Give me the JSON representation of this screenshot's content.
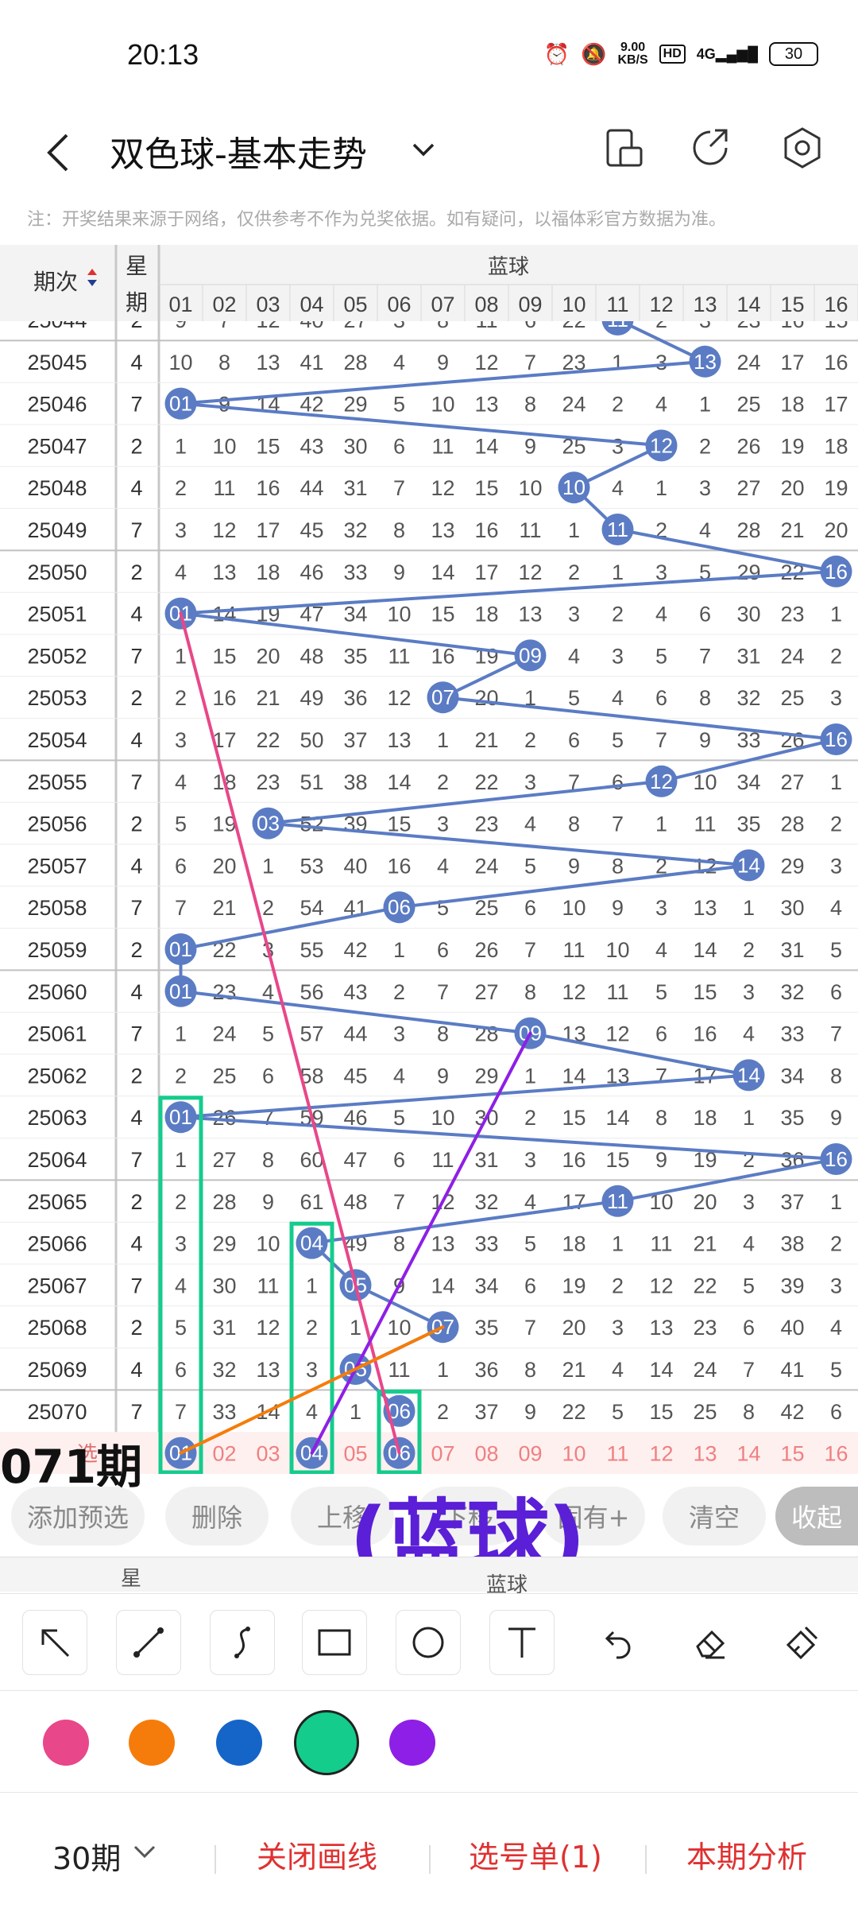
{
  "status": {
    "time": "20:13",
    "net_speed_top": "9.00",
    "net_speed_bottom": "KB/S",
    "hd": "HD",
    "signal": "4G",
    "battery": "30"
  },
  "header": {
    "title": "双色球-基本走势"
  },
  "notice": "注：开奖结果来源于网络，仅供参考不作为兑奖依据。如有疑问，以福体彩官方数据为准。",
  "table": {
    "period_header": "期次",
    "week_header": "星期",
    "blue_header": "蓝球",
    "columns": [
      "01",
      "02",
      "03",
      "04",
      "05",
      "06",
      "07",
      "08",
      "09",
      "10",
      "11",
      "12",
      "13",
      "14",
      "15",
      "16"
    ],
    "partial_row": {
      "period": "25044",
      "week": "2",
      "cells": [
        9,
        7,
        12,
        40,
        27,
        3,
        8,
        11,
        6,
        22,
        null,
        2,
        3,
        23,
        16,
        15
      ],
      "hit": 11
    },
    "rows": [
      {
        "period": "25045",
        "week": "4",
        "cells": [
          10,
          8,
          13,
          41,
          28,
          4,
          9,
          12,
          7,
          23,
          1,
          3,
          null,
          24,
          17,
          16
        ],
        "hit": 13
      },
      {
        "period": "25046",
        "week": "7",
        "cells": [
          null,
          9,
          14,
          42,
          29,
          5,
          10,
          13,
          8,
          24,
          2,
          4,
          1,
          25,
          18,
          17
        ],
        "hit": 1
      },
      {
        "period": "25047",
        "week": "2",
        "cells": [
          1,
          10,
          15,
          43,
          30,
          6,
          11,
          14,
          9,
          25,
          3,
          null,
          2,
          26,
          19,
          18
        ],
        "hit": 12
      },
      {
        "period": "25048",
        "week": "4",
        "cells": [
          2,
          11,
          16,
          44,
          31,
          7,
          12,
          15,
          10,
          null,
          4,
          1,
          3,
          27,
          20,
          19
        ],
        "hit": 10
      },
      {
        "period": "25049",
        "week": "7",
        "cells": [
          3,
          12,
          17,
          45,
          32,
          8,
          13,
          16,
          11,
          1,
          null,
          2,
          4,
          28,
          21,
          20
        ],
        "hit": 11
      },
      {
        "period": "25050",
        "week": "2",
        "cells": [
          4,
          13,
          18,
          46,
          33,
          9,
          14,
          17,
          12,
          2,
          1,
          3,
          5,
          29,
          22,
          null
        ],
        "hit": 16
      },
      {
        "period": "25051",
        "week": "4",
        "cells": [
          null,
          14,
          19,
          47,
          34,
          10,
          15,
          18,
          13,
          3,
          2,
          4,
          6,
          30,
          23,
          1
        ],
        "hit": 1
      },
      {
        "period": "25052",
        "week": "7",
        "cells": [
          1,
          15,
          20,
          48,
          35,
          11,
          16,
          19,
          null,
          4,
          3,
          5,
          7,
          31,
          24,
          2
        ],
        "hit": 9
      },
      {
        "period": "25053",
        "week": "2",
        "cells": [
          2,
          16,
          21,
          49,
          36,
          12,
          null,
          20,
          1,
          5,
          4,
          6,
          8,
          32,
          25,
          3
        ],
        "hit": 7
      },
      {
        "period": "25054",
        "week": "4",
        "cells": [
          3,
          17,
          22,
          50,
          37,
          13,
          1,
          21,
          2,
          6,
          5,
          7,
          9,
          33,
          26,
          null
        ],
        "hit": 16
      },
      {
        "period": "25055",
        "week": "7",
        "cells": [
          4,
          18,
          23,
          51,
          38,
          14,
          2,
          22,
          3,
          7,
          6,
          null,
          10,
          34,
          27,
          1
        ],
        "hit": 12
      },
      {
        "period": "25056",
        "week": "2",
        "cells": [
          5,
          19,
          null,
          52,
          39,
          15,
          3,
          23,
          4,
          8,
          7,
          1,
          11,
          35,
          28,
          2
        ],
        "hit": 3
      },
      {
        "period": "25057",
        "week": "4",
        "cells": [
          6,
          20,
          1,
          53,
          40,
          16,
          4,
          24,
          5,
          9,
          8,
          2,
          12,
          null,
          29,
          3
        ],
        "hit": 14
      },
      {
        "period": "25058",
        "week": "7",
        "cells": [
          7,
          21,
          2,
          54,
          41,
          null,
          5,
          25,
          6,
          10,
          9,
          3,
          13,
          1,
          30,
          4
        ],
        "hit": 6
      },
      {
        "period": "25059",
        "week": "2",
        "cells": [
          null,
          22,
          3,
          55,
          42,
          1,
          6,
          26,
          7,
          11,
          10,
          4,
          14,
          2,
          31,
          5
        ],
        "hit": 1
      },
      {
        "period": "25060",
        "week": "4",
        "cells": [
          null,
          23,
          4,
          56,
          43,
          2,
          7,
          27,
          8,
          12,
          11,
          5,
          15,
          3,
          32,
          6
        ],
        "hit": 1
      },
      {
        "period": "25061",
        "week": "7",
        "cells": [
          1,
          24,
          5,
          57,
          44,
          3,
          8,
          28,
          null,
          13,
          12,
          6,
          16,
          4,
          33,
          7
        ],
        "hit": 9
      },
      {
        "period": "25062",
        "week": "2",
        "cells": [
          2,
          25,
          6,
          58,
          45,
          4,
          9,
          29,
          1,
          14,
          13,
          7,
          17,
          null,
          34,
          8
        ],
        "hit": 14
      },
      {
        "period": "25063",
        "week": "4",
        "cells": [
          null,
          26,
          7,
          59,
          46,
          5,
          10,
          30,
          2,
          15,
          14,
          8,
          18,
          1,
          35,
          9
        ],
        "hit": 1
      },
      {
        "period": "25064",
        "week": "7",
        "cells": [
          1,
          27,
          8,
          60,
          47,
          6,
          11,
          31,
          3,
          16,
          15,
          9,
          19,
          2,
          36,
          null
        ],
        "hit": 16
      },
      {
        "period": "25065",
        "week": "2",
        "cells": [
          2,
          28,
          9,
          61,
          48,
          7,
          12,
          32,
          4,
          17,
          null,
          10,
          20,
          3,
          37,
          1
        ],
        "hit": 11
      },
      {
        "period": "25066",
        "week": "4",
        "cells": [
          3,
          29,
          10,
          null,
          49,
          8,
          13,
          33,
          5,
          18,
          1,
          11,
          21,
          4,
          38,
          2
        ],
        "hit": 4
      },
      {
        "period": "25067",
        "week": "7",
        "cells": [
          4,
          30,
          11,
          1,
          null,
          9,
          14,
          34,
          6,
          19,
          2,
          12,
          22,
          5,
          39,
          3
        ],
        "hit": 5
      },
      {
        "period": "25068",
        "week": "2",
        "cells": [
          5,
          31,
          12,
          2,
          1,
          10,
          null,
          35,
          7,
          20,
          3,
          13,
          23,
          6,
          40,
          4
        ],
        "hit": 7
      },
      {
        "period": "25069",
        "week": "4",
        "cells": [
          6,
          32,
          13,
          3,
          null,
          11,
          1,
          36,
          8,
          21,
          4,
          14,
          24,
          7,
          41,
          5
        ],
        "hit": 5
      },
      {
        "period": "25070",
        "week": "7",
        "cells": [
          7,
          33,
          14,
          4,
          1,
          null,
          2,
          37,
          9,
          22,
          5,
          15,
          25,
          8,
          42,
          6
        ],
        "hit": 6
      }
    ],
    "selection_row": {
      "label": "选",
      "selected": [
        "01",
        "04",
        "06"
      ]
    }
  },
  "overlay": {
    "period_text": "071期",
    "big_text": "(蓝球)"
  },
  "actions": {
    "add_preselect": "添加预选",
    "delete": "删除",
    "move_up": "上移",
    "move_down": "下移",
    "fixed_plus": "固有+",
    "clear": "清空",
    "collapse": "收起"
  },
  "subhead": {
    "week": "星",
    "blue": "蓝球"
  },
  "tools": [
    "arrow-tool",
    "line-tool",
    "curve-tool",
    "rectangle-tool",
    "circle-tool",
    "text-tool",
    "undo-tool",
    "eraser-tool",
    "clear-brush-tool"
  ],
  "colors": {
    "pink": "#e8478a",
    "orange": "#f57c0a",
    "blue": "#1565c8",
    "green": "#14cc8c",
    "purple": "#8e1fe6",
    "ball_blue": "#5b7cc4",
    "selection_red": "#f08080"
  },
  "bottom": {
    "period_select": "30期",
    "close_drawing": "关闭画线",
    "selection_list": "选号单(1)",
    "current_analysis": "本期分析"
  }
}
